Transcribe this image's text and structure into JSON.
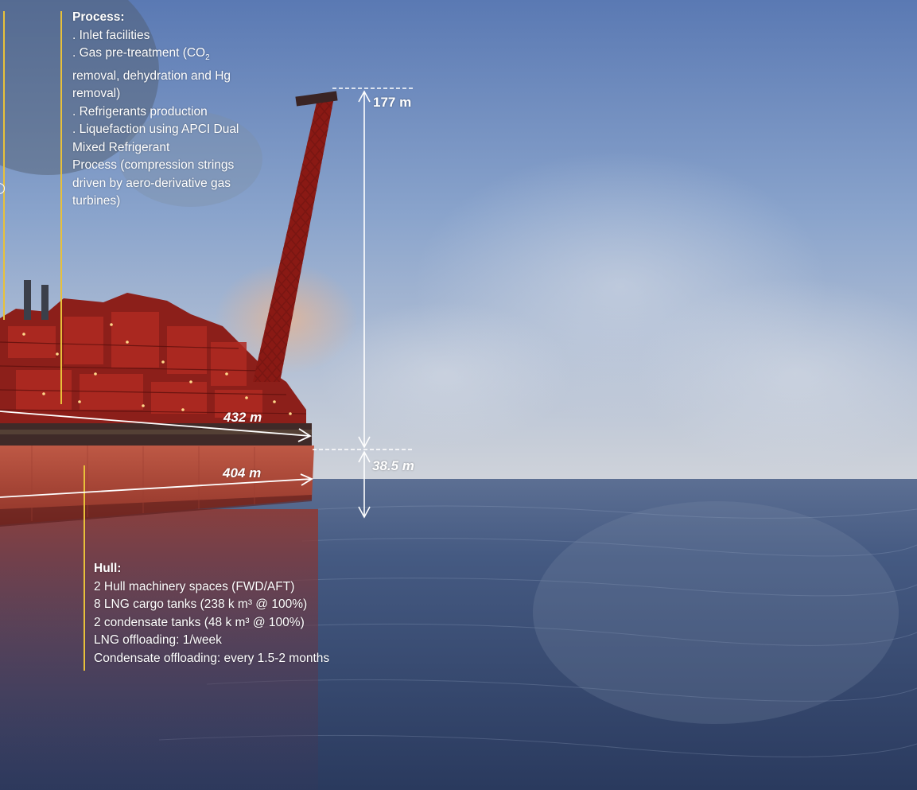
{
  "process": {
    "heading": "Process:",
    "lines": [
      ". Inlet facilities",
      ". Gas pre-treatment (CO",
      "removal, dehydration and Hg",
      "removal)",
      ". Refrigerants production",
      ". Liquefaction using APCI Dual",
      "Mixed Refrigerant",
      "Process (compression strings",
      "driven by aero-derivative gas",
      "turbines)"
    ],
    "co2_subscript": "2"
  },
  "hull": {
    "heading": "Hull:",
    "lines": [
      "2 Hull machinery spaces (FWD/AFT)",
      "8 LNG cargo tanks (238 k m³ @ 100%)",
      "2 condensate tanks (48 k m³ @ 100%)",
      "LNG offloading: 1/week",
      "Condensate offloading: every 1.5-2 months"
    ]
  },
  "dimensions": {
    "height_above": "177 m",
    "length_upper": "432 m",
    "length_hull": "404 m",
    "height_hull": "38.5 m"
  },
  "colors": {
    "sky_top": "#5f7fb6",
    "sky_mid": "#8ea8cf",
    "horizon": "#c9cfd9",
    "sea_dark": "#2a3a5e",
    "sea_mid": "#4a5f86",
    "hull_red": "#b2483a",
    "structure_red": "#8c1f1a",
    "accent_yellow": "#e8c13a",
    "annotation": "#ffffff"
  }
}
